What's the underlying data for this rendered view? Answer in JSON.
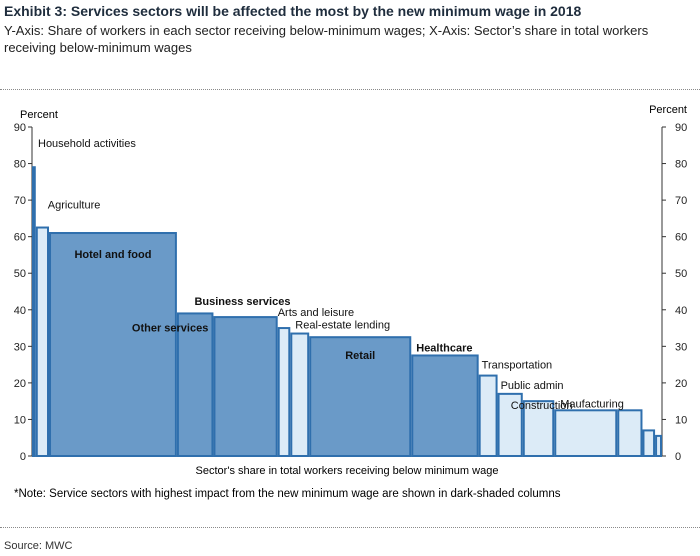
{
  "header": {
    "title": "Exhibit 3: Services sectors will be affected the most by the new minimum wage in 2018",
    "subtitle": "Y-Axis: Share of workers in each sector receiving below-minimum wages; X-Axis: Sector’s share in total workers receiving below-minimum wages"
  },
  "footer": {
    "note": "*Note: Service sectors with highest impact from the new minimum wage are shown in dark-shaded columns",
    "source": "Source: MWC"
  },
  "colors": {
    "dark": "#6a9ac8",
    "light": "#dcebf7",
    "stroke": "#2f6fad"
  },
  "chart_data": {
    "type": "bar",
    "subtype": "variable-width (marimekko-style) column chart",
    "xlabel": "Sector's share in total workers receiving below minimum wage",
    "ylabel_left": "Percent",
    "ylabel_right": "Percent",
    "ylim": [
      0,
      90
    ],
    "yticks": [
      0,
      10,
      20,
      30,
      40,
      50,
      60,
      70,
      80,
      90
    ],
    "grid": false,
    "series": [
      {
        "label": "Household activities",
        "value": 79,
        "width": 0.6,
        "shade": "light",
        "bold": false
      },
      {
        "label": "Agriculture",
        "value": 62.5,
        "width": 2.1,
        "shade": "light",
        "bold": false
      },
      {
        "label": "Hotel and food",
        "value": 61,
        "width": 20.3,
        "shade": "dark",
        "bold": true
      },
      {
        "label": "Other services",
        "value": 39,
        "width": 5.8,
        "shade": "dark",
        "bold": true
      },
      {
        "label": "Business services",
        "value": 38,
        "width": 10.2,
        "shade": "dark",
        "bold": true
      },
      {
        "label": "Arts and leisure",
        "value": 35,
        "width": 2.0,
        "shade": "light",
        "bold": false
      },
      {
        "label": "Real-estate lending",
        "value": 33.5,
        "width": 3.0,
        "shade": "light",
        "bold": false
      },
      {
        "label": "Retail",
        "value": 32.5,
        "width": 16.2,
        "shade": "dark",
        "bold": true
      },
      {
        "label": "Healthcare",
        "value": 27.5,
        "width": 10.7,
        "shade": "dark",
        "bold": true
      },
      {
        "label": "Transportation",
        "value": 22,
        "width": 3.0,
        "shade": "light",
        "bold": false
      },
      {
        "label": "Public admin",
        "value": 17,
        "width": 4.0,
        "shade": "light",
        "bold": false
      },
      {
        "label": "Construction",
        "value": 15,
        "width": 5.0,
        "shade": "light",
        "bold": false
      },
      {
        "label": "Maufacturing",
        "value": 12.5,
        "width": 10.0,
        "shade": "light",
        "bold": false
      },
      {
        "label": "",
        "value": 12.5,
        "width": 4.0,
        "shade": "light",
        "bold": false
      },
      {
        "label": "",
        "value": 7,
        "width": 2.0,
        "shade": "light",
        "bold": false
      },
      {
        "label": "",
        "value": 5.5,
        "width": 1.1,
        "shade": "light",
        "bold": false
      }
    ]
  }
}
